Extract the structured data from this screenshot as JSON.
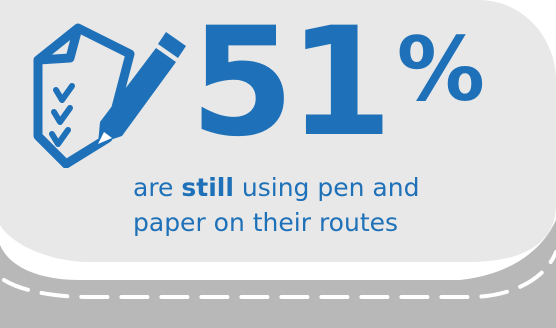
{
  "stat": {
    "number": "51",
    "unit": "%"
  },
  "caption": {
    "prefix": "are ",
    "emphasis": "still",
    "line1_rest": " using pen and",
    "line2": "paper on their routes"
  },
  "colors": {
    "accent": "#1e71b8",
    "panel": "#e8e8e8",
    "road": "#b8b8b8",
    "dash": "#ffffff"
  },
  "icons": [
    "checklist-document-icon",
    "pen-icon"
  ]
}
